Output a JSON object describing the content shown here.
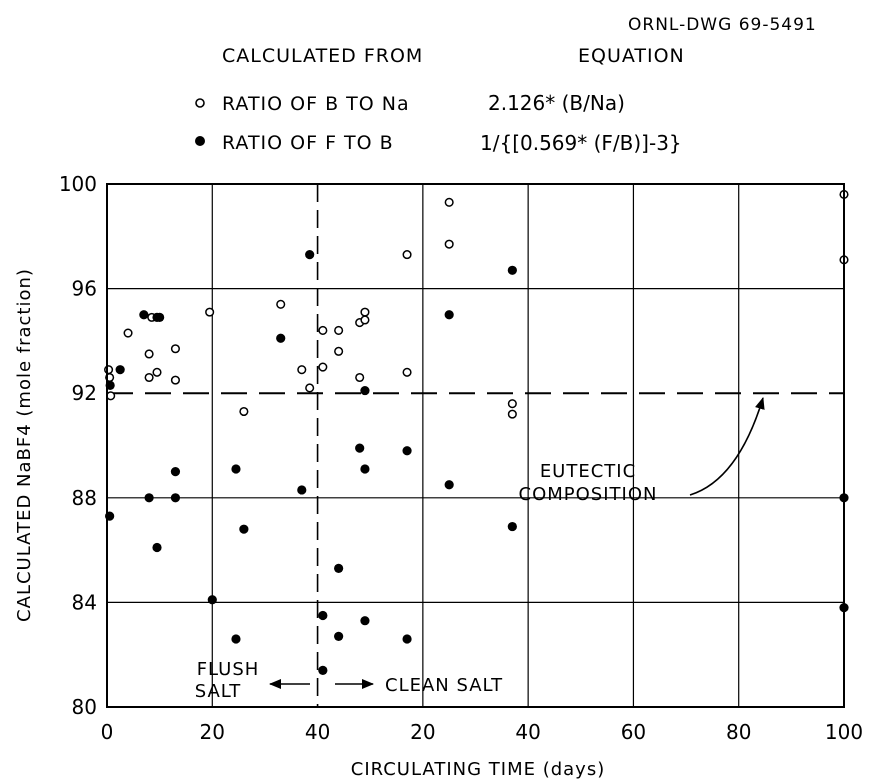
{
  "drawing_number": "ORNL-DWG 69-5491",
  "legend": {
    "header_left": "CALCULATED FROM",
    "header_right": "EQUATION",
    "open": {
      "label": "RATIO OF B TO Na",
      "equation": "2.126* (B/Na)"
    },
    "filled": {
      "label": "RATIO OF F TO B",
      "equation": "1/{[0.569* (F/B)]-3}"
    }
  },
  "chart_data": {
    "type": "scatter",
    "title": "",
    "xlabel": "CIRCULATING TIME (days)",
    "ylabel": "CALCULATED NaBF4 (mole fraction)",
    "ylim": [
      80,
      100
    ],
    "y_ticks": [
      80,
      84,
      88,
      92,
      96,
      100
    ],
    "x_tick_labels": [
      "0",
      "20",
      "40",
      "20",
      "40",
      "60",
      "80",
      "100"
    ],
    "grid": true,
    "x_note": "x = cumulative plotted position in days; labels restart at 0 where salt changes (0-40 flush salt, 40 onward clean salt labelled 0-100)",
    "series": [
      {
        "name": "RATIO OF B TO Na",
        "marker": "open-circle",
        "points": [
          [
            0.3,
            92.9
          ],
          [
            0.5,
            92.6
          ],
          [
            0.7,
            91.9
          ],
          [
            4,
            94.3
          ],
          [
            8,
            93.5
          ],
          [
            8,
            92.6
          ],
          [
            8.5,
            94.9
          ],
          [
            9.5,
            92.8
          ],
          [
            13,
            93.7
          ],
          [
            13,
            92.5
          ],
          [
            19.5,
            95.1
          ],
          [
            26,
            91.3
          ],
          [
            33,
            95.4
          ],
          [
            37,
            92.9
          ],
          [
            38.5,
            92.2
          ],
          [
            41,
            94.4
          ],
          [
            41,
            93.0
          ],
          [
            44,
            94.4
          ],
          [
            44,
            93.6
          ],
          [
            48,
            94.7
          ],
          [
            48,
            92.6
          ],
          [
            49,
            95.1
          ],
          [
            49,
            94.8
          ],
          [
            57,
            97.3
          ],
          [
            57,
            92.8
          ],
          [
            65,
            99.3
          ],
          [
            65,
            97.7
          ],
          [
            77,
            91.6
          ],
          [
            77,
            91.2
          ],
          [
            140,
            99.6
          ],
          [
            140,
            97.1
          ]
        ]
      },
      {
        "name": "RATIO OF F TO B",
        "marker": "filled-circle",
        "points": [
          [
            0.5,
            87.3
          ],
          [
            0.6,
            92.3
          ],
          [
            2.5,
            92.9
          ],
          [
            7,
            95.0
          ],
          [
            8,
            88.0
          ],
          [
            9.5,
            86.1
          ],
          [
            9.5,
            94.9
          ],
          [
            10,
            94.9
          ],
          [
            13,
            89.0
          ],
          [
            13,
            88.0
          ],
          [
            20,
            84.1
          ],
          [
            24.5,
            89.1
          ],
          [
            24.5,
            82.6
          ],
          [
            26,
            86.8
          ],
          [
            33,
            94.1
          ],
          [
            37,
            88.3
          ],
          [
            38.5,
            97.3
          ],
          [
            41,
            83.5
          ],
          [
            41,
            81.4
          ],
          [
            44,
            85.3
          ],
          [
            44,
            82.7
          ],
          [
            48,
            89.9
          ],
          [
            49,
            92.1
          ],
          [
            49,
            89.1
          ],
          [
            49,
            83.3
          ],
          [
            57,
            89.8
          ],
          [
            57,
            82.6
          ],
          [
            65,
            95.0
          ],
          [
            65,
            88.5
          ],
          [
            77,
            96.7
          ],
          [
            77,
            86.9
          ],
          [
            140,
            88.0
          ],
          [
            140,
            83.8
          ]
        ]
      }
    ],
    "reference_line": {
      "y": 92,
      "style": "dashed",
      "label": "EUTECTIC COMPOSITION"
    },
    "divider": {
      "x": 40,
      "style": "dashed",
      "left_label": "FLUSH SALT",
      "right_label": "CLEAN SALT"
    }
  }
}
